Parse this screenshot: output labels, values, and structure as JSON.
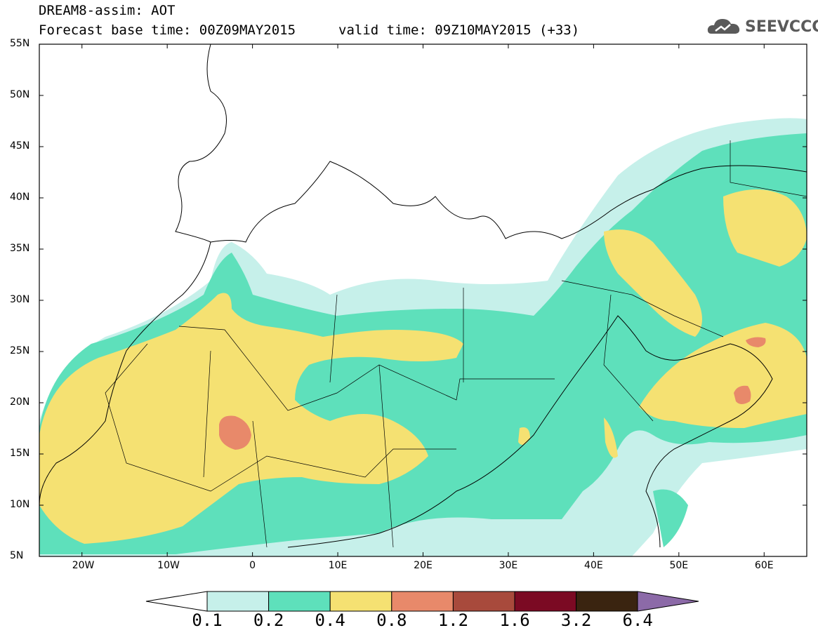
{
  "header": {
    "title": "DREAM8-assim: AOT",
    "base_time": "Forecast base time: 00Z09MAY2015",
    "valid_time": "valid time: 09Z10MAY2015 (+33)"
  },
  "logo": {
    "text": "SEEVCCC",
    "icon": "cloud-icon"
  },
  "map": {
    "lat_labels": [
      "55N",
      "50N",
      "45N",
      "40N",
      "35N",
      "30N",
      "25N",
      "20N",
      "15N",
      "10N",
      "5N"
    ],
    "lon_labels": [
      "20W",
      "10W",
      "0",
      "10E",
      "20E",
      "30E",
      "40E",
      "50E",
      "60E"
    ],
    "extent": {
      "lon_min": -25,
      "lon_max": 65,
      "lat_min": 5,
      "lat_max": 55
    }
  },
  "colorbar": {
    "levels": [
      "0.1",
      "0.2",
      "0.4",
      "0.8",
      "1.2",
      "1.6",
      "3.2",
      "6.4"
    ],
    "colors": [
      "#ffffff",
      "#c6f0ea",
      "#5ee0bb",
      "#f5e172",
      "#e8896a",
      "#a84a3c",
      "#7b0a23",
      "#3a2410",
      "#8c6aa8"
    ]
  }
}
